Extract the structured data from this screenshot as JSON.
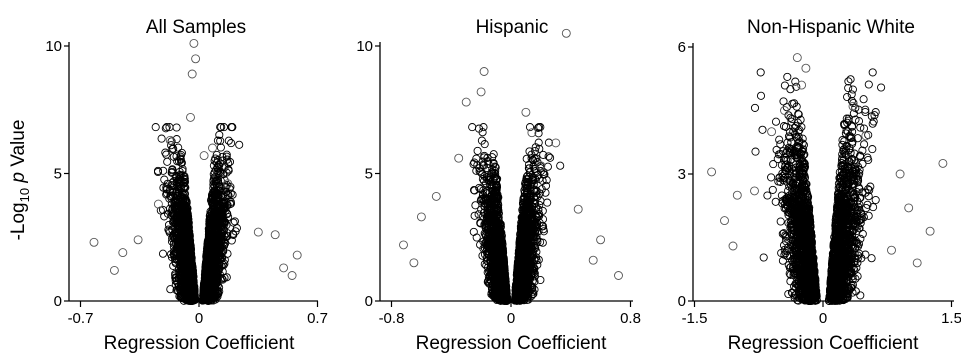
{
  "chart_data": [
    {
      "type": "scatter",
      "title": "All Samples",
      "xlabel": "Regression Coefficient",
      "ylabel": "-Log10 p Value",
      "xlim": [
        -0.7,
        0.7
      ],
      "ylim": [
        0,
        11
      ],
      "xticks": [
        "-0.7",
        "0",
        "0.7"
      ],
      "yticks": [
        "0",
        "5",
        "10"
      ],
      "marker": "open-circle",
      "color": "#000000",
      "notable_points": [
        {
          "x": -0.03,
          "y": 10.1
        },
        {
          "x": -0.02,
          "y": 9.5
        },
        {
          "x": -0.04,
          "y": 8.9
        },
        {
          "x": -0.05,
          "y": 7.2
        },
        {
          "x": 0.08,
          "y": 6.0
        },
        {
          "x": 0.03,
          "y": 5.7
        },
        {
          "x": -0.17,
          "y": 6.3
        },
        {
          "x": 0.17,
          "y": 4.6
        },
        {
          "x": -0.24,
          "y": 3.8
        },
        {
          "x": 0.35,
          "y": 2.7
        },
        {
          "x": -0.36,
          "y": 2.4
        },
        {
          "x": -0.45,
          "y": 1.9
        },
        {
          "x": -0.62,
          "y": 2.3
        },
        {
          "x": 0.58,
          "y": 1.8
        },
        {
          "x": 0.45,
          "y": 2.6
        },
        {
          "x": 0.5,
          "y": 1.3
        },
        {
          "x": 0.55,
          "y": 1.0
        },
        {
          "x": -0.5,
          "y": 1.2
        }
      ]
    },
    {
      "type": "scatter",
      "title": "Hispanic",
      "xlabel": "Regression Coefficient",
      "ylabel": "",
      "xlim": [
        -0.8,
        0.8
      ],
      "ylim": [
        0,
        11
      ],
      "xticks": [
        "-0.8",
        "0",
        "0.8"
      ],
      "yticks": [
        "0",
        "5",
        "10"
      ],
      "marker": "open-circle",
      "color": "#000000",
      "notable_points": [
        {
          "x": 0.37,
          "y": 10.5
        },
        {
          "x": -0.18,
          "y": 9.0
        },
        {
          "x": -0.2,
          "y": 8.2
        },
        {
          "x": -0.3,
          "y": 7.8
        },
        {
          "x": 0.1,
          "y": 7.4
        },
        {
          "x": 0.14,
          "y": 6.6
        },
        {
          "x": 0.3,
          "y": 6.2
        },
        {
          "x": -0.35,
          "y": 5.6
        },
        {
          "x": 0.2,
          "y": 5.3
        },
        {
          "x": -0.5,
          "y": 4.1
        },
        {
          "x": -0.6,
          "y": 3.3
        },
        {
          "x": 0.45,
          "y": 3.6
        },
        {
          "x": -0.72,
          "y": 2.2
        },
        {
          "x": 0.6,
          "y": 2.4
        },
        {
          "x": 0.72,
          "y": 1.0
        },
        {
          "x": -0.65,
          "y": 1.5
        },
        {
          "x": 0.55,
          "y": 1.6
        }
      ]
    },
    {
      "type": "scatter",
      "title": "Non-Hispanic White",
      "xlabel": "Regression Coefficient",
      "ylabel": "",
      "xlim": [
        -1.5,
        1.5
      ],
      "ylim": [
        0,
        6
      ],
      "xticks": [
        "-1.5",
        "0",
        "1.5"
      ],
      "yticks": [
        "0",
        "3",
        "6"
      ],
      "marker": "open-circle",
      "color": "#000000",
      "notable_points": [
        {
          "x": -0.3,
          "y": 5.75
        },
        {
          "x": -0.2,
          "y": 5.5
        },
        {
          "x": -0.25,
          "y": 5.1
        },
        {
          "x": -0.45,
          "y": 4.5
        },
        {
          "x": 0.35,
          "y": 4.6
        },
        {
          "x": -0.6,
          "y": 4.0
        },
        {
          "x": 0.5,
          "y": 3.9
        },
        {
          "x": -1.3,
          "y": 3.05
        },
        {
          "x": 1.4,
          "y": 3.25
        },
        {
          "x": 0.9,
          "y": 3.0
        },
        {
          "x": -1.0,
          "y": 2.5
        },
        {
          "x": 1.25,
          "y": 1.65
        },
        {
          "x": -1.15,
          "y": 1.9
        },
        {
          "x": 1.0,
          "y": 2.2
        },
        {
          "x": -0.8,
          "y": 2.6
        },
        {
          "x": 0.8,
          "y": 1.2
        },
        {
          "x": -1.05,
          "y": 1.3
        },
        {
          "x": 1.1,
          "y": 0.9
        }
      ]
    }
  ]
}
